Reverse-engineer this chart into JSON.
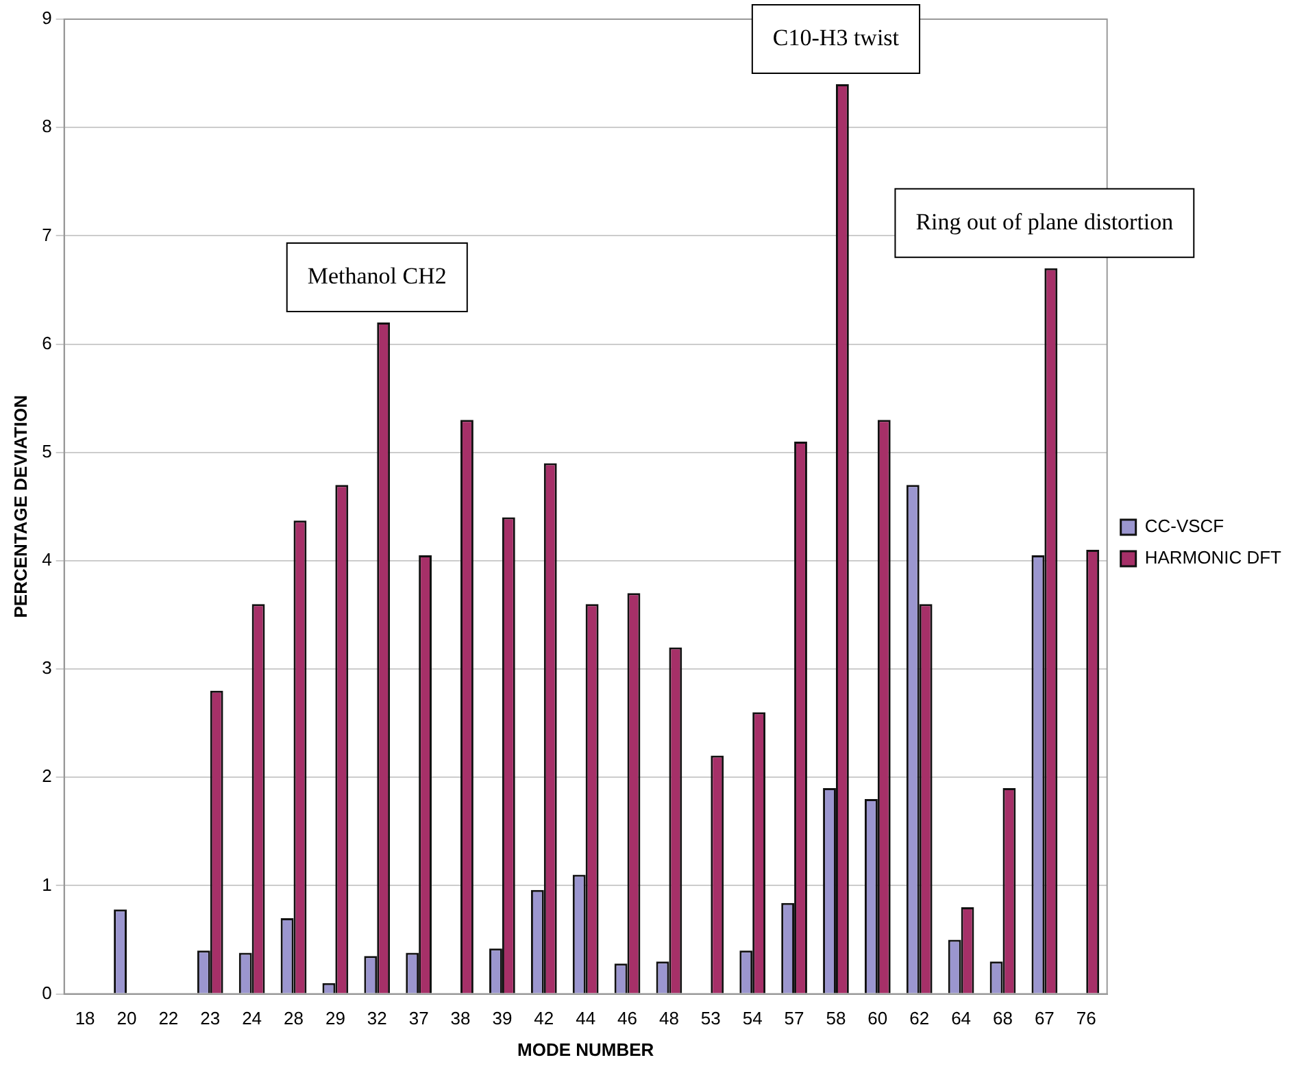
{
  "chart_data": {
    "type": "bar",
    "xlabel": "MODE NUMBER",
    "ylabel": "PERCENTAGE DEVIATION",
    "categories": [
      "18",
      "20",
      "22",
      "23",
      "24",
      "28",
      "29",
      "32",
      "37",
      "38",
      "39",
      "42",
      "44",
      "46",
      "48",
      "53",
      "54",
      "57",
      "58",
      "60",
      "62",
      "64",
      "68",
      "67",
      "76"
    ],
    "series": [
      {
        "name": "CC-VSCF",
        "color": "#9b96cf",
        "values": [
          0,
          0.78,
          0,
          0.4,
          0.38,
          0.7,
          0.1,
          0.35,
          0.38,
          0,
          0.42,
          0.96,
          1.1,
          0.28,
          0.3,
          0,
          0.4,
          0.84,
          1.9,
          1.8,
          4.7,
          0.5,
          0.3,
          4.05,
          0
        ]
      },
      {
        "name": "HARMONIC DFT",
        "color": "#a63068",
        "values": [
          0,
          0,
          0,
          2.8,
          3.6,
          4.37,
          4.7,
          6.2,
          4.05,
          5.3,
          4.4,
          4.9,
          3.6,
          3.7,
          3.2,
          2.2,
          2.6,
          5.1,
          8.4,
          5.3,
          3.6,
          0.8,
          1.9,
          6.7,
          4.1
        ]
      }
    ],
    "ylim": [
      0,
      9
    ],
    "yticks": [
      0,
      1,
      2,
      3,
      4,
      5,
      6,
      7,
      8,
      9
    ],
    "grid": "y",
    "legend": "right",
    "annotations": [
      {
        "text": "Methanol CH2",
        "x": "32",
        "y": 6.2
      },
      {
        "text": "C10-H3 twist",
        "x": "58",
        "y": 8.4
      },
      {
        "text": "Ring out of plane distortion",
        "x": "67",
        "y": 6.7
      }
    ]
  }
}
